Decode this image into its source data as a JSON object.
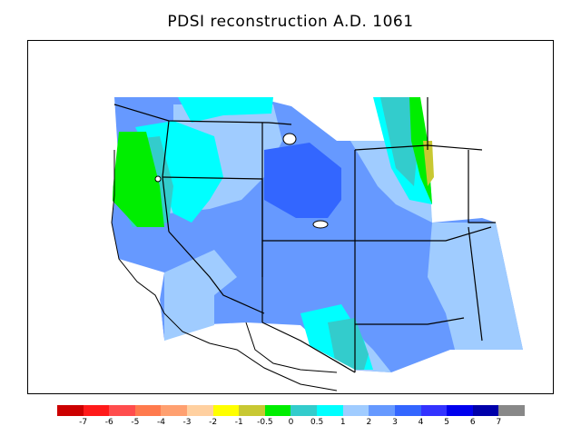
{
  "title": "PDSI reconstruction A.D. 1061",
  "legend": {
    "colors": [
      "#cc0000",
      "#ff1a1a",
      "#ff4d4d",
      "#ff7a4d",
      "#ffa070",
      "#ffd0a0",
      "#ffff00",
      "#c8c832",
      "#00ee00",
      "#33cccc",
      "#00ffff",
      "#a0ccff",
      "#6699ff",
      "#3366ff",
      "#3333ff",
      "#0000ee",
      "#0000aa",
      "#888888"
    ],
    "labels": [
      "-7",
      "-6",
      "-5",
      "-4",
      "-3",
      "-2",
      "-1",
      "-0.5",
      "0",
      "0.5",
      "1",
      "2",
      "3",
      "4",
      "5",
      "6",
      "7"
    ]
  }
}
